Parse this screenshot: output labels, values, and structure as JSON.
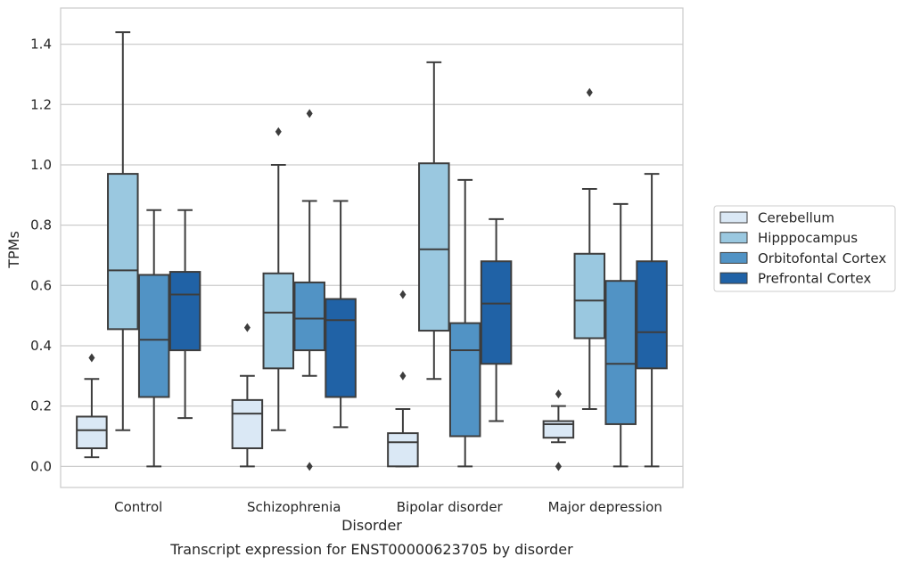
{
  "caption": "Transcript expression for ENST00000623705 by disorder",
  "chart_data": {
    "type": "box",
    "title": "",
    "xlabel": "Disorder",
    "ylabel": "TPMs",
    "ylim": [
      -0.07,
      1.52
    ],
    "yticks": [
      "0.0",
      "0.2",
      "0.4",
      "0.6",
      "0.8",
      "1.0",
      "1.2",
      "1.4"
    ],
    "grid": "horizontal",
    "legend_position": "right",
    "categories": [
      "Control",
      "Schizophrenia",
      "Bipolar disorder",
      "Major depression"
    ],
    "series": [
      {
        "name": "Cerebellum",
        "color": "#dae8f5",
        "boxes": [
          {
            "whislo": 0.03,
            "q1": 0.06,
            "med": 0.12,
            "q3": 0.165,
            "whishi": 0.29,
            "fliers": [
              0.36
            ]
          },
          {
            "whislo": 0.0,
            "q1": 0.06,
            "med": 0.175,
            "q3": 0.22,
            "whishi": 0.3,
            "fliers": [
              0.46
            ]
          },
          {
            "whislo": 0.0,
            "q1": 0.0,
            "med": 0.08,
            "q3": 0.11,
            "whishi": 0.19,
            "fliers": [
              0.3,
              0.57
            ]
          },
          {
            "whislo": 0.08,
            "q1": 0.095,
            "med": 0.14,
            "q3": 0.15,
            "whishi": 0.2,
            "fliers": [
              0.0,
              0.0,
              0.24
            ]
          }
        ]
      },
      {
        "name": "Hipppocampus",
        "color": "#9ac8e0",
        "boxes": [
          {
            "whislo": 0.12,
            "q1": 0.455,
            "med": 0.65,
            "q3": 0.97,
            "whishi": 1.44,
            "fliers": []
          },
          {
            "whislo": 0.12,
            "q1": 0.325,
            "med": 0.51,
            "q3": 0.64,
            "whishi": 1.0,
            "fliers": [
              1.11
            ]
          },
          {
            "whislo": 0.29,
            "q1": 0.45,
            "med": 0.72,
            "q3": 1.005,
            "whishi": 1.34,
            "fliers": []
          },
          {
            "whislo": 0.19,
            "q1": 0.425,
            "med": 0.55,
            "q3": 0.705,
            "whishi": 0.92,
            "fliers": [
              1.24
            ]
          }
        ]
      },
      {
        "name": "Orbitofontal Cortex",
        "color": "#5193c5",
        "boxes": [
          {
            "whislo": 0.0,
            "q1": 0.23,
            "med": 0.42,
            "q3": 0.635,
            "whishi": 0.85,
            "fliers": []
          },
          {
            "whislo": 0.3,
            "q1": 0.385,
            "med": 0.49,
            "q3": 0.61,
            "whishi": 0.88,
            "fliers": [
              0.0,
              1.17
            ]
          },
          {
            "whislo": 0.0,
            "q1": 0.1,
            "med": 0.385,
            "q3": 0.475,
            "whishi": 0.95,
            "fliers": []
          },
          {
            "whislo": 0.0,
            "q1": 0.14,
            "med": 0.34,
            "q3": 0.615,
            "whishi": 0.87,
            "fliers": []
          }
        ]
      },
      {
        "name": "Prefrontal Cortex",
        "color": "#2062a6",
        "boxes": [
          {
            "whislo": 0.16,
            "q1": 0.385,
            "med": 0.57,
            "q3": 0.645,
            "whishi": 0.85,
            "fliers": []
          },
          {
            "whislo": 0.13,
            "q1": 0.23,
            "med": 0.485,
            "q3": 0.555,
            "whishi": 0.88,
            "fliers": []
          },
          {
            "whislo": 0.15,
            "q1": 0.34,
            "med": 0.54,
            "q3": 0.68,
            "whishi": 0.82,
            "fliers": []
          },
          {
            "whislo": 0.0,
            "q1": 0.325,
            "med": 0.445,
            "q3": 0.68,
            "whishi": 0.97,
            "fliers": []
          }
        ]
      }
    ]
  }
}
